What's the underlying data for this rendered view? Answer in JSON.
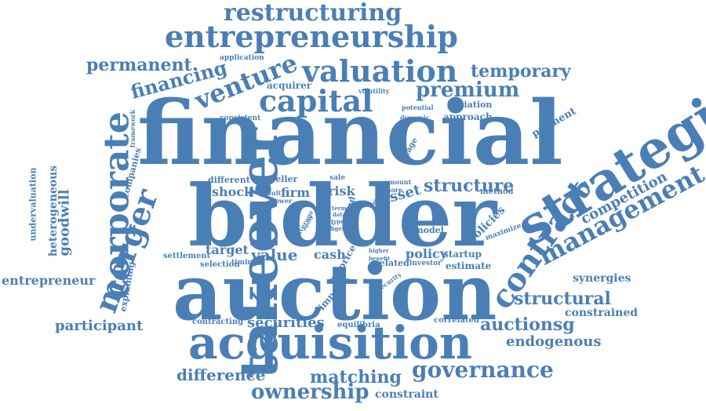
{
  "cloud": {
    "color": "#4a7fb5",
    "words": [
      "financial",
      "bidder",
      "auction",
      "acquisition",
      "takeover",
      "strategic",
      "entrepreneurship",
      "valuation",
      "capital",
      "corporate",
      "merger",
      "restructuring",
      "venture",
      "contract",
      "management",
      "premium",
      "financing",
      "permanent",
      "temporary",
      "structure",
      "governance",
      "ownership",
      "matching",
      "structural",
      "auctionsg",
      "endogenous",
      "competition",
      "securities",
      "difference",
      "participant",
      "entrepreneur",
      "goodwill",
      "heterogeneous",
      "undervaluation",
      "explaining",
      "companies",
      "framework",
      "positive",
      "consistent",
      "application",
      "acquirer",
      "volatility",
      "potential",
      "dynamic",
      "initiation",
      "approach",
      "payment",
      "stage",
      "synergies",
      "constrained",
      "constraint",
      "correlated",
      "equilibria",
      "contracting",
      "settlement",
      "selection",
      "timing",
      "target",
      "value",
      "cash",
      "price",
      "policy",
      "startup",
      "estimate",
      "related",
      "investor",
      "security",
      "impact",
      "design",
      "higher",
      "benefit",
      "model",
      "policies",
      "maximize",
      "method",
      "asset",
      "amount",
      "more",
      "data",
      "type",
      "agent",
      "sale",
      "risk",
      "firm",
      "shock",
      "different",
      "seller",
      "result",
      "power",
      "bond",
      "average",
      "equity",
      "effect",
      "term",
      "fair"
    ]
  }
}
